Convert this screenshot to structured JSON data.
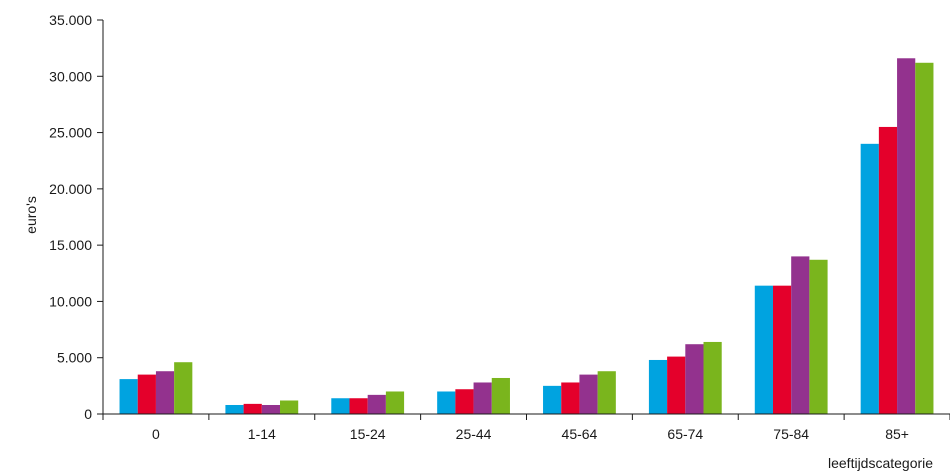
{
  "chart_data": {
    "type": "bar",
    "title": "",
    "ylabel": "euro's",
    "xlabel": "leeftijdscategorie",
    "ylim": [
      0,
      35000
    ],
    "yticks": [
      "0",
      "5.000",
      "10.000",
      "15.000",
      "20.000",
      "25.000",
      "30.000",
      "35.000"
    ],
    "ytick_values": [
      0,
      5000,
      10000,
      15000,
      20000,
      25000,
      30000,
      35000
    ],
    "grid": false,
    "legend": "none",
    "categories": [
      "0",
      "1-14",
      "15-24",
      "25-44",
      "45-64",
      "65-74",
      "75-84",
      "85+"
    ],
    "series": [
      {
        "color": "#00a3e0",
        "values": [
          3100,
          800,
          1400,
          2000,
          2500,
          4800,
          11400,
          24000
        ]
      },
      {
        "color": "#e4002b",
        "values": [
          3500,
          900,
          1400,
          2200,
          2800,
          5100,
          11400,
          25500
        ]
      },
      {
        "color": "#93328e",
        "values": [
          3800,
          800,
          1700,
          2800,
          3500,
          6200,
          14000,
          31600
        ]
      },
      {
        "color": "#7ab51d",
        "values": [
          4600,
          1200,
          2000,
          3200,
          3800,
          6400,
          13700,
          31200
        ]
      }
    ]
  }
}
